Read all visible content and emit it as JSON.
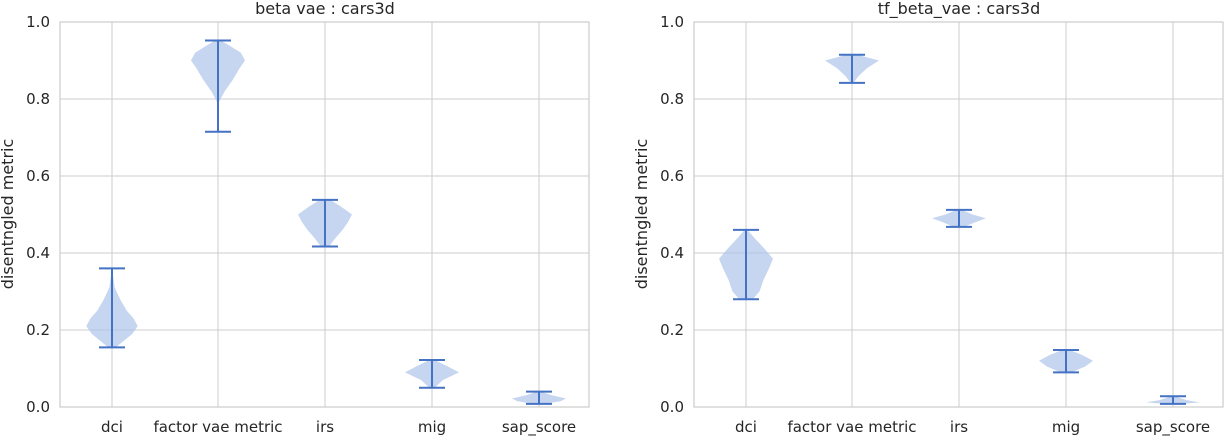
{
  "chart_data": [
    {
      "type": "violin",
      "title": "beta vae : cars3d",
      "xlabel": "",
      "ylabel": "disentngled metric",
      "ylim": [
        0.0,
        1.0
      ],
      "yticks": [
        "0.0",
        "0.2",
        "0.4",
        "0.6",
        "0.8",
        "1.0"
      ],
      "grid": true,
      "categories": [
        "dci",
        "factor_vae_metric",
        "irs",
        "mig",
        "sap_score"
      ],
      "category_labels": [
        "dci",
        "factor  vae  metric",
        "irs",
        "mig",
        "sap_score"
      ],
      "series": [
        {
          "category": "dci",
          "min": 0.155,
          "max": 0.36,
          "density": [
            [
              0.155,
              0.15
            ],
            [
              0.17,
              0.4
            ],
            [
              0.19,
              0.75
            ],
            [
              0.21,
              0.95
            ],
            [
              0.23,
              0.8
            ],
            [
              0.25,
              0.55
            ],
            [
              0.28,
              0.3
            ],
            [
              0.31,
              0.1
            ],
            [
              0.36,
              0.0
            ]
          ]
        },
        {
          "category": "factor_vae_metric",
          "min": 0.715,
          "max": 0.952,
          "density": [
            [
              0.715,
              0.0
            ],
            [
              0.79,
              0.02
            ],
            [
              0.82,
              0.25
            ],
            [
              0.85,
              0.55
            ],
            [
              0.88,
              0.8
            ],
            [
              0.9,
              1.0
            ],
            [
              0.92,
              0.85
            ],
            [
              0.94,
              0.4
            ],
            [
              0.952,
              0.1
            ]
          ]
        },
        {
          "category": "irs",
          "min": 0.417,
          "max": 0.538,
          "density": [
            [
              0.417,
              0.15
            ],
            [
              0.44,
              0.4
            ],
            [
              0.46,
              0.65
            ],
            [
              0.48,
              0.85
            ],
            [
              0.5,
              1.0
            ],
            [
              0.52,
              0.6
            ],
            [
              0.538,
              0.2
            ]
          ]
        },
        {
          "category": "mig",
          "min": 0.05,
          "max": 0.122,
          "density": [
            [
              0.05,
              0.1
            ],
            [
              0.07,
              0.4
            ],
            [
              0.09,
              1.0
            ],
            [
              0.105,
              0.6
            ],
            [
              0.122,
              0.1
            ]
          ]
        },
        {
          "category": "sap_score",
          "min": 0.008,
          "max": 0.04,
          "density": [
            [
              0.008,
              0.2
            ],
            [
              0.015,
              0.8
            ],
            [
              0.022,
              1.0
            ],
            [
              0.03,
              0.5
            ],
            [
              0.04,
              0.05
            ]
          ]
        }
      ]
    },
    {
      "type": "violin",
      "title": "tf_beta_vae : cars3d",
      "xlabel": "",
      "ylabel": "disentngled metric",
      "ylim": [
        0.0,
        1.0
      ],
      "yticks": [
        "0.0",
        "0.2",
        "0.4",
        "0.6",
        "0.8",
        "1.0"
      ],
      "grid": true,
      "categories": [
        "dci",
        "factor_vae_metric",
        "irs",
        "mig",
        "sap_score"
      ],
      "category_labels": [
        "dci",
        "factor  vae  metric",
        "irs",
        "mig",
        "sap_score"
      ],
      "series": [
        {
          "category": "dci",
          "min": 0.28,
          "max": 0.46,
          "density": [
            [
              0.28,
              0.25
            ],
            [
              0.3,
              0.5
            ],
            [
              0.33,
              0.65
            ],
            [
              0.36,
              0.85
            ],
            [
              0.385,
              1.0
            ],
            [
              0.41,
              0.7
            ],
            [
              0.44,
              0.3
            ],
            [
              0.46,
              0.05
            ]
          ]
        },
        {
          "category": "factor_vae_metric",
          "min": 0.842,
          "max": 0.915,
          "density": [
            [
              0.842,
              0.05
            ],
            [
              0.86,
              0.25
            ],
            [
              0.88,
              0.55
            ],
            [
              0.9,
              1.0
            ],
            [
              0.915,
              0.2
            ]
          ]
        },
        {
          "category": "irs",
          "min": 0.468,
          "max": 0.512,
          "density": [
            [
              0.468,
              0.2
            ],
            [
              0.48,
              0.6
            ],
            [
              0.49,
              1.0
            ],
            [
              0.5,
              0.5
            ],
            [
              0.512,
              0.1
            ]
          ]
        },
        {
          "category": "mig",
          "min": 0.09,
          "max": 0.148,
          "density": [
            [
              0.09,
              0.2
            ],
            [
              0.105,
              0.7
            ],
            [
              0.12,
              1.0
            ],
            [
              0.135,
              0.6
            ],
            [
              0.148,
              0.15
            ]
          ]
        },
        {
          "category": "sap_score",
          "min": 0.008,
          "max": 0.028,
          "density": [
            [
              0.008,
              0.3
            ],
            [
              0.012,
              1.0
            ],
            [
              0.018,
              0.5
            ],
            [
              0.028,
              0.05
            ]
          ]
        }
      ]
    }
  ]
}
